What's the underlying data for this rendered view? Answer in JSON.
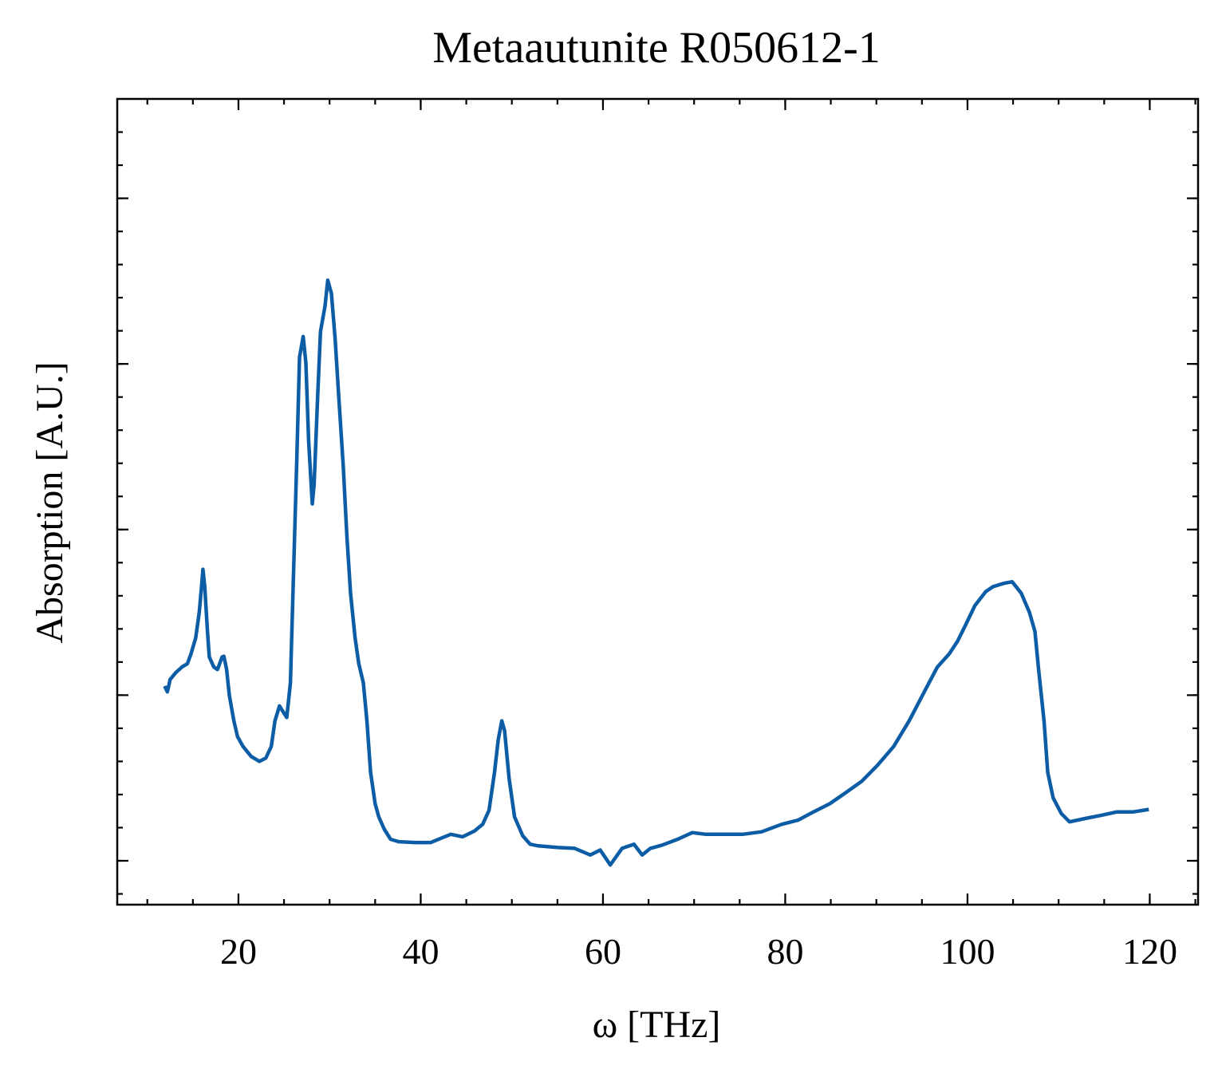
{
  "chart_data": {
    "type": "line",
    "title": "Metaautunite R050612-1",
    "x_label": "ω [THz]",
    "y_label": "Absorption [A.U.]",
    "x": [
      11.9,
      12.2,
      12.5,
      13.1,
      13.8,
      14.4,
      14.8,
      15.3,
      15.7,
      16.0,
      16.1,
      16.3,
      16.6,
      16.8,
      17.3,
      17.7,
      18.2,
      18.4,
      18.7,
      19.0,
      19.5,
      19.9,
      20.5,
      21.4,
      22.3,
      23.0,
      23.6,
      24.0,
      24.5,
      24.9,
      25.3,
      25.7,
      26.0,
      26.4,
      26.7,
      27.1,
      27.4,
      27.7,
      28.1,
      28.3,
      28.7,
      29.0,
      29.5,
      29.8,
      30.2,
      30.6,
      31.0,
      31.5,
      31.9,
      32.3,
      32.8,
      33.2,
      33.7,
      34.1,
      34.5,
      35.0,
      35.4,
      36.0,
      36.7,
      37.6,
      39.4,
      41.1,
      42.4,
      43.3,
      44.6,
      45.9,
      46.8,
      47.5,
      48.1,
      48.5,
      48.9,
      49.2,
      49.7,
      50.3,
      51.2,
      52.0,
      52.9,
      55.1,
      56.9,
      58.6,
      59.7,
      60.8,
      62.1,
      63.4,
      64.3,
      65.2,
      66.5,
      68.2,
      69.8,
      71.3,
      73.5,
      75.3,
      77.4,
      79.6,
      81.4,
      83.1,
      84.9,
      86.6,
      88.4,
      90.1,
      91.9,
      93.6,
      95.4,
      96.7,
      98.0,
      98.9,
      99.8,
      100.8,
      102.0,
      102.8,
      104.0,
      104.9,
      105.9,
      106.8,
      107.4,
      107.8,
      108.4,
      108.8,
      109.4,
      110.3,
      111.2,
      112.9,
      114.7,
      116.4,
      118.2,
      119.9
    ],
    "values": [
      0.211,
      0.204,
      0.219,
      0.227,
      0.234,
      0.238,
      0.25,
      0.269,
      0.3,
      0.338,
      0.352,
      0.331,
      0.277,
      0.246,
      0.234,
      0.231,
      0.246,
      0.247,
      0.231,
      0.2,
      0.169,
      0.15,
      0.138,
      0.126,
      0.12,
      0.124,
      0.138,
      0.169,
      0.187,
      0.18,
      0.173,
      0.215,
      0.331,
      0.485,
      0.608,
      0.633,
      0.601,
      0.508,
      0.431,
      0.454,
      0.562,
      0.639,
      0.67,
      0.701,
      0.685,
      0.631,
      0.562,
      0.477,
      0.392,
      0.323,
      0.269,
      0.238,
      0.215,
      0.169,
      0.107,
      0.069,
      0.053,
      0.038,
      0.026,
      0.023,
      0.022,
      0.022,
      0.028,
      0.032,
      0.029,
      0.036,
      0.044,
      0.061,
      0.107,
      0.146,
      0.169,
      0.157,
      0.099,
      0.053,
      0.03,
      0.02,
      0.018,
      0.016,
      0.015,
      0.007,
      0.013,
      -0.005,
      0.015,
      0.02,
      0.007,
      0.015,
      0.019,
      0.026,
      0.034,
      0.032,
      0.032,
      0.032,
      0.035,
      0.044,
      0.049,
      0.059,
      0.069,
      0.082,
      0.096,
      0.115,
      0.138,
      0.169,
      0.207,
      0.234,
      0.25,
      0.265,
      0.285,
      0.308,
      0.325,
      0.331,
      0.335,
      0.337,
      0.323,
      0.3,
      0.277,
      0.231,
      0.169,
      0.107,
      0.076,
      0.057,
      0.047,
      0.051,
      0.055,
      0.059,
      0.059,
      0.062
    ],
    "color": "#0c5da5",
    "xlim": [
      6.7,
      125.3
    ],
    "xticks": [
      20,
      40,
      60,
      80,
      100,
      120
    ],
    "ylim": [
      -0.053,
      0.92
    ],
    "yticks": [
      0,
      0.2,
      0.4,
      0.6,
      0.8
    ]
  }
}
